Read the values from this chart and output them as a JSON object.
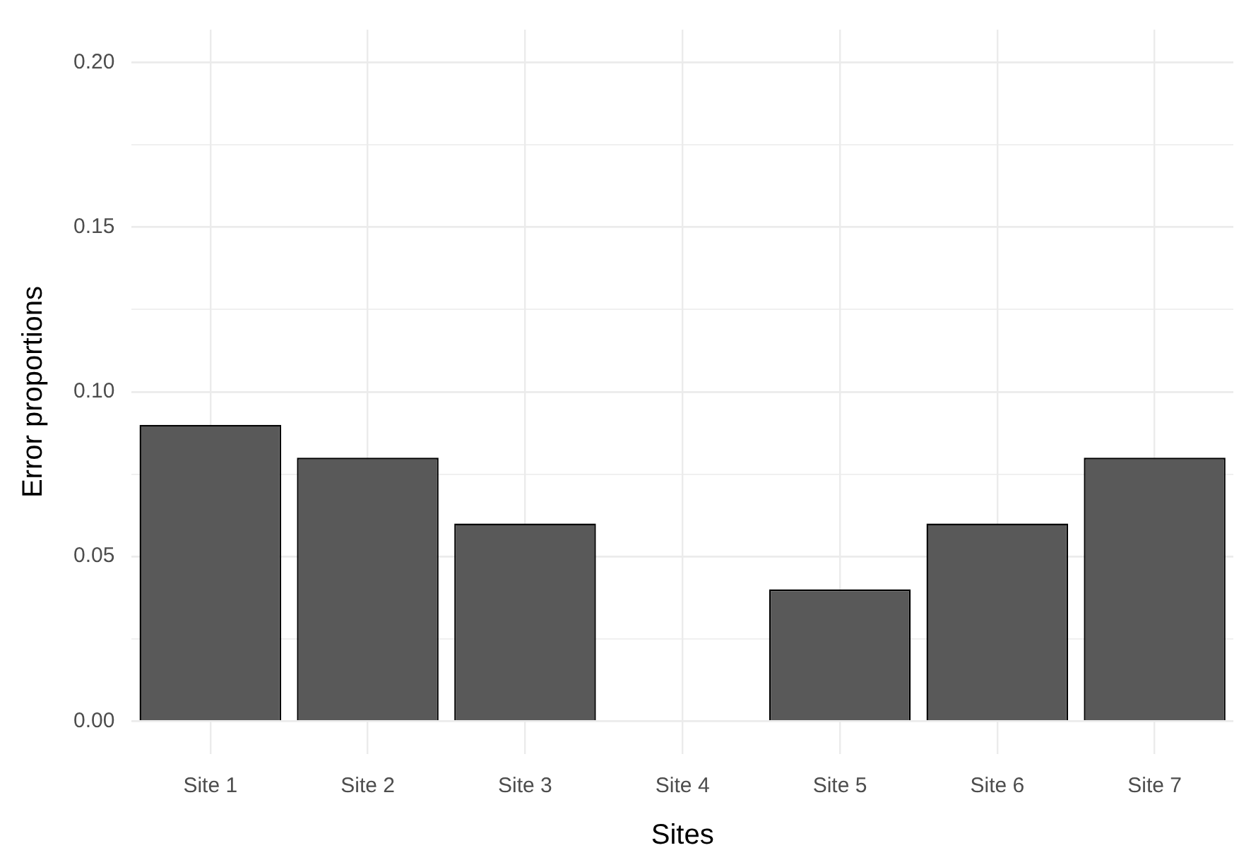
{
  "chart_data": {
    "type": "bar",
    "xlabel": "Sites",
    "ylabel": "Error proportions",
    "categories": [
      "Site 1",
      "Site 2",
      "Site 3",
      "Site 4",
      "Site 5",
      "Site 6",
      "Site 7"
    ],
    "values": [
      0.09,
      0.08,
      0.06,
      0,
      0.04,
      0.06,
      0.08
    ],
    "color": "#595959",
    "ylim": [
      -0.01,
      0.21
    ],
    "yticks": [
      {
        "value": 0,
        "label": "0.00"
      },
      {
        "value": 0.025,
        "label": null
      },
      {
        "value": 0.05,
        "label": "0.05"
      },
      {
        "value": 0.075,
        "label": null
      },
      {
        "value": 0.1,
        "label": "0.10"
      },
      {
        "value": 0.125,
        "label": null
      },
      {
        "value": 0.15,
        "label": "0.15"
      },
      {
        "value": 0.175,
        "label": null
      },
      {
        "value": 0.2,
        "label": "0.20"
      }
    ],
    "grid": true,
    "legend": false
  }
}
